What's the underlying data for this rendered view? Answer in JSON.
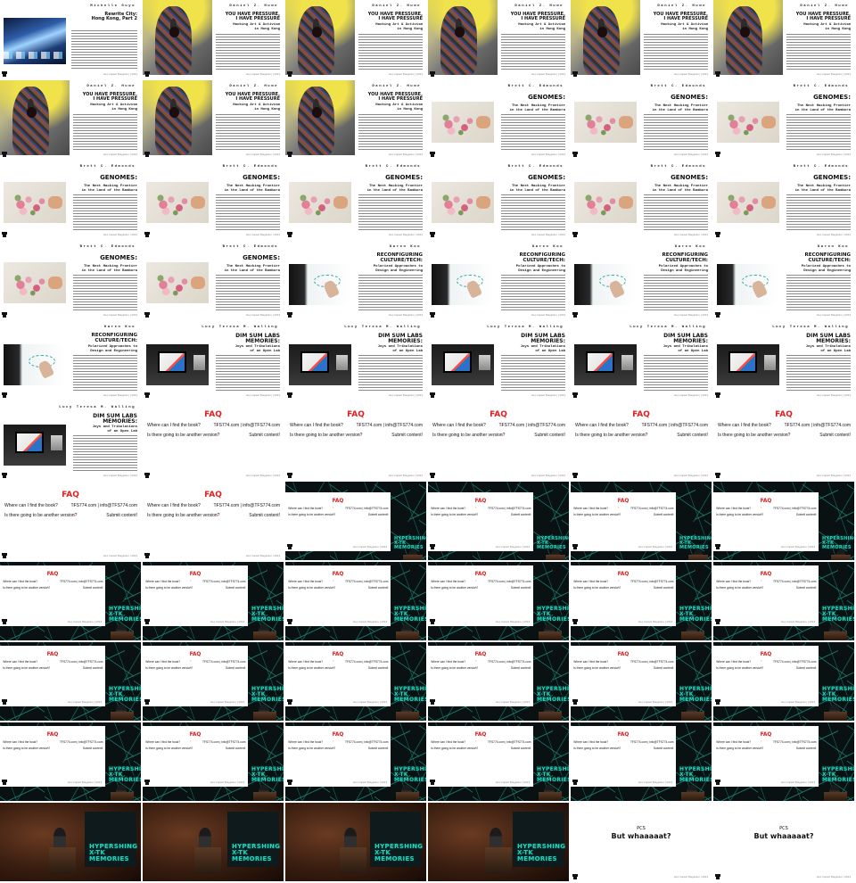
{
  "row1_first": {
    "author": "Michelle Guyo",
    "title": "Rewrite City:\nHong Kong, Part 2"
  },
  "pressure": {
    "author": "Daniel Z. Hume",
    "title": "YOU HAVE PRESSURE,\nI HAVE PRESSURE",
    "subtitle": "Hacking Art & Activism\nin Hong Kong"
  },
  "genomes": {
    "author": "Brett C. Edmonds",
    "title": "GENOMES:",
    "subtitle": "The Next Hacking Frontier\nin the Land of the Bambora"
  },
  "reconfig": {
    "author": "Karen Koo",
    "title": "RECONFIGURING\nCULTURE/TECH:",
    "subtitle": "Polarized Approaches to\nDesign and Engineering"
  },
  "dimsum": {
    "author": "Lucy Teresa M. Walling",
    "title": "DIM SUM LABS\nMEMORIES:",
    "subtitle": "Joys and Tribulations\nof an Open Lab"
  },
  "footer_source": "Hex Impact Magazine | 2013",
  "faq": {
    "title": "FAQ",
    "q1": "Where can I find the book?",
    "a1": "TFS774.com | info@TFS774.com",
    "q2": "Is there going to be another version?",
    "a2": "Submit content!"
  },
  "brand_text": "HYPERSHING\nX-TK\nMEMORIES",
  "pcs": {
    "line1": "PCS",
    "line2": "But whaaaaat?"
  },
  "colors": {
    "accent_red": "#e02020",
    "teal": "#1fd6c0"
  }
}
